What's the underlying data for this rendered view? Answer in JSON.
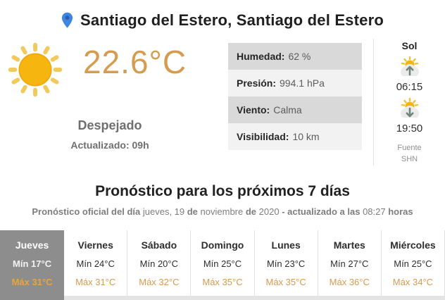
{
  "header": {
    "location": "Santiago del Estero, Santiago del Estero"
  },
  "current": {
    "temperature": "22.6°C",
    "condition": "Despejado",
    "updated": "Actualizado: 09h",
    "icon": "sun"
  },
  "stats": {
    "rows": [
      {
        "label": "Humedad:",
        "value": "62 %"
      },
      {
        "label": "Presión:",
        "value": "994.1 hPa"
      },
      {
        "label": "Viento:",
        "value": "Calma"
      },
      {
        "label": "Visibilidad:",
        "value": "10 km"
      }
    ]
  },
  "sun": {
    "title": "Sol",
    "sunrise_time": "06:15",
    "sunset_time": "19:50",
    "source_line1": "Fuente",
    "source_line2": "SHN"
  },
  "forecast": {
    "title": "Pronóstico para los próximos 7 días",
    "subtitle_segments": [
      {
        "text": "Pronóstico oficial del día ",
        "bold": true
      },
      {
        "text": "jueves, 19 ",
        "bold": false
      },
      {
        "text": "de ",
        "bold": true
      },
      {
        "text": "noviembre ",
        "bold": false
      },
      {
        "text": "de ",
        "bold": true
      },
      {
        "text": "2020 ",
        "bold": false
      },
      {
        "text": "- actualizado a las ",
        "bold": true
      },
      {
        "text": "08:27 ",
        "bold": false
      },
      {
        "text": "horas",
        "bold": true
      }
    ],
    "days": [
      {
        "name": "Jueves",
        "min": "Mín 17°C",
        "max": "Máx 31°C",
        "selected": true
      },
      {
        "name": "Viernes",
        "min": "Mín 24°C",
        "max": "Máx 31°C",
        "selected": false
      },
      {
        "name": "Sábado",
        "min": "Mín 20°C",
        "max": "Máx 32°C",
        "selected": false
      },
      {
        "name": "Domingo",
        "min": "Mín 25°C",
        "max": "Máx 35°C",
        "selected": false
      },
      {
        "name": "Lunes",
        "min": "Mín 23°C",
        "max": "Máx 35°C",
        "selected": false
      },
      {
        "name": "Martes",
        "min": "Mín 27°C",
        "max": "Máx 36°C",
        "selected": false
      },
      {
        "name": "Miércoles",
        "min": "Mín 25°C",
        "max": "Máx 34°C",
        "selected": false
      }
    ]
  },
  "colors": {
    "accent_orange": "#d59b4e",
    "max_orange": "#d79a4e",
    "active_max_orange": "#e9a43c",
    "active_cell_bg": "#8d8d8d",
    "pin_blue": "#4086e0",
    "sun_yellow": "#f7b50f"
  }
}
